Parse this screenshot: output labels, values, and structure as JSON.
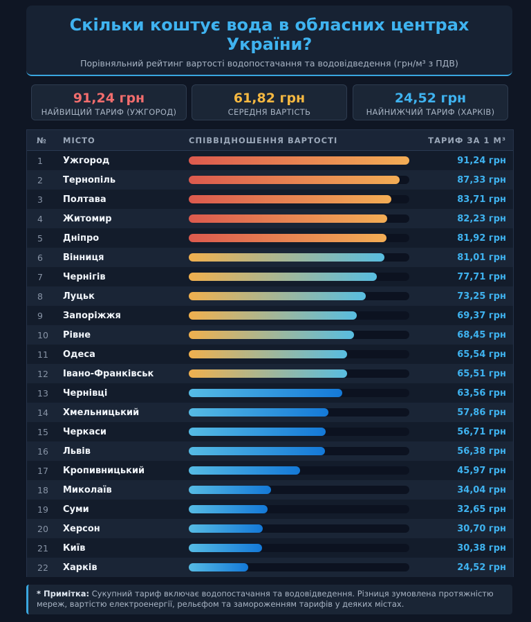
{
  "header": {
    "title": "Скільки коштує вода в обласних центрах України?",
    "subtitle": "Порівняльний рейтинг вартості водопостачання та водовідведення (грн/м³ з ПДВ)"
  },
  "cards": [
    {
      "value": "91,24 грн",
      "label": "НАЙВИЩИЙ ТАРИФ (УЖГОРОД)",
      "color": "#f26d6d"
    },
    {
      "value": "61,82 грн",
      "label": "СЕРЕДНЯ ВАРТІСТЬ",
      "color": "#f5b841"
    },
    {
      "value": "24,52 грн",
      "label": "НАЙНИЖЧИЙ ТАРИФ (ХАРКІВ)",
      "color": "#3fb3f0"
    }
  ],
  "table": {
    "headers": {
      "rank": "№",
      "city": "МІСТО",
      "ratio": "СПІВВІДНОШЕННЯ ВАРТОСТІ",
      "tariff": "ТАРИФ ЗА 1 М³"
    }
  },
  "chart_data": {
    "type": "bar",
    "orientation": "horizontal",
    "xlim": [
      0,
      91.24
    ],
    "categories": [
      "Ужгород",
      "Тернопіль",
      "Полтава",
      "Житомир",
      "Дніпро",
      "Вінниця",
      "Чернігів",
      "Луцьк",
      "Запоріжжя",
      "Рівне",
      "Одеса",
      "Івано-Франківськ",
      "Чернівці",
      "Хмельницький",
      "Черкаси",
      "Львів",
      "Кропивницький",
      "Миколаїв",
      "Суми",
      "Херсон",
      "Київ",
      "Харків"
    ],
    "values": [
      91.24,
      87.33,
      83.71,
      82.23,
      81.92,
      81.01,
      77.71,
      73.25,
      69.37,
      68.45,
      65.54,
      65.51,
      63.56,
      57.86,
      56.71,
      56.38,
      45.97,
      34.04,
      32.65,
      30.7,
      30.38,
      24.52
    ],
    "value_labels": [
      "91,24 грн",
      "87,33 грн",
      "83,71 грн",
      "82,23 грн",
      "81,92 грн",
      "81,01 грн",
      "77,71 грн",
      "73,25 грн",
      "69,37 грн",
      "68,45 грн",
      "65,54 грн",
      "65,51 грн",
      "63,56 грн",
      "57,86 грн",
      "56,71 грн",
      "56,38 грн",
      "45,97 грн",
      "34,04 грн",
      "32,65 грн",
      "30,70 грн",
      "30,38 грн",
      "24,52 грн"
    ],
    "color_groups": [
      "high",
      "high",
      "high",
      "high",
      "high",
      "mid",
      "mid",
      "mid",
      "mid",
      "mid",
      "mid",
      "mid",
      "low",
      "low",
      "low",
      "low",
      "low",
      "low",
      "low",
      "low",
      "low",
      "low"
    ],
    "colors": {
      "high": "#dc5a4e→#f3ad55",
      "mid": "#f0b04e→#58bde0",
      "low": "#56bbe4→#1479d8"
    }
  },
  "note": {
    "label": "* Примітка:",
    "text": " Сукупний тариф включає водопостачання та водовідведення. Різниця зумовлена протяжністю мереж, вартістю електроенергії, рельєфом та замороженням тарифів у деяких містах."
  }
}
